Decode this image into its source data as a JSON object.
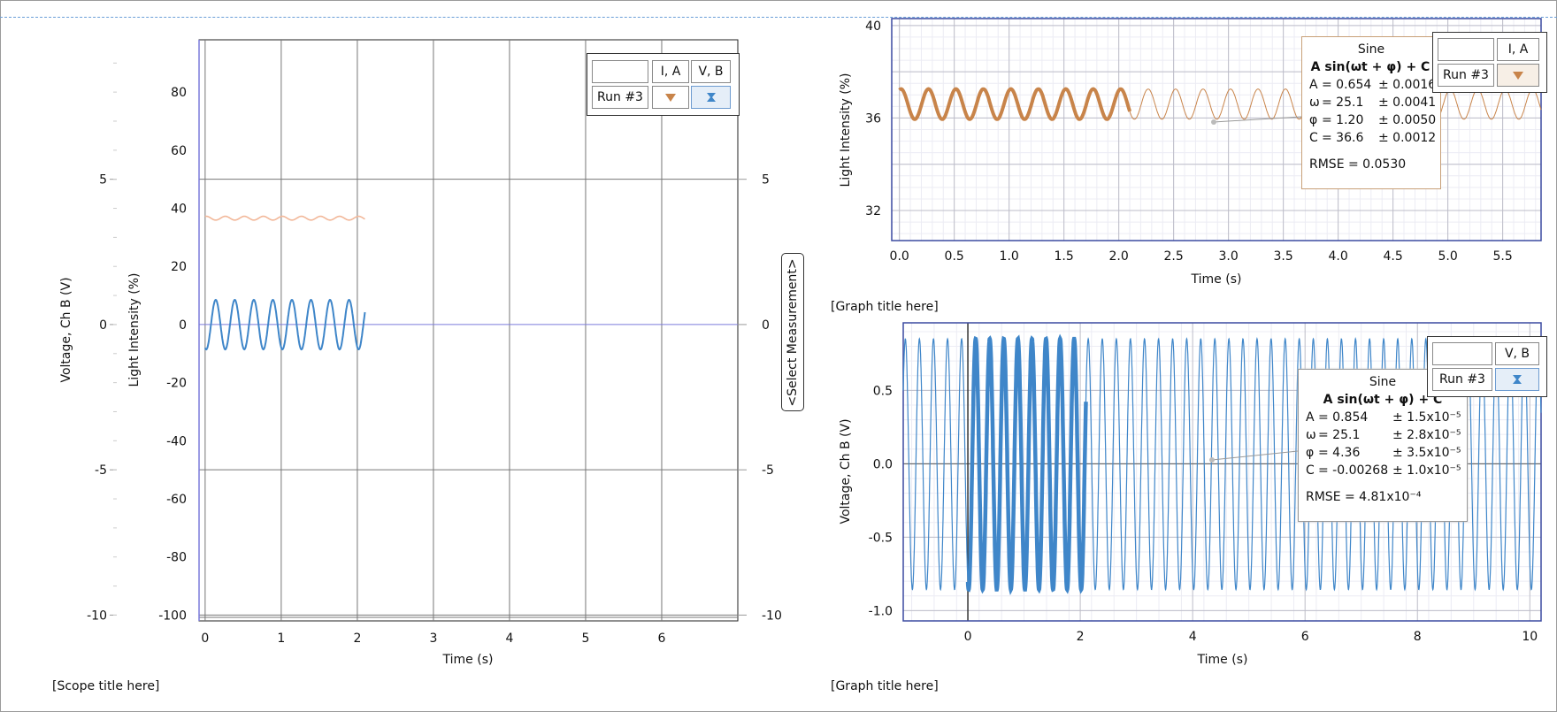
{
  "scope": {
    "caption": "[Scope title here]",
    "select_measurement": "<Select Measurement>",
    "control": {
      "run": "Run #3",
      "col1": "I, A",
      "col2": "V, B",
      "icon1": "triangle-down-icon",
      "icon2": "hourglass-icon"
    }
  },
  "graph1": {
    "control": {
      "run": "Run #3",
      "col1": "I, A",
      "icon1": "triangle-down-icon"
    },
    "fit": {
      "title": "Sine",
      "equation": "A sin(ωt + φ) + C",
      "rows": [
        {
          "label": "A",
          "value": "= 0.654",
          "err": "± 0.0016"
        },
        {
          "label": "ω",
          "value": "= 25.1",
          "err": "± 0.0041"
        },
        {
          "label": "φ",
          "value": "= 1.20",
          "err": "± 0.0050"
        },
        {
          "label": "C",
          "value": "= 36.6",
          "err": "± 0.0012"
        }
      ],
      "rmse": "RMSE = 0.0530"
    }
  },
  "graph2": {
    "caption_top": "[Graph title here]",
    "caption_bottom": "[Graph title here]",
    "control": {
      "run": "Run #3",
      "col1": "V, B",
      "icon1": "hourglass-icon"
    },
    "fit": {
      "title": "Sine",
      "equation": "A sin(ωt + φ) + C",
      "rows": [
        {
          "label": "A",
          "value": "= 0.854",
          "err": "± 1.5x10⁻⁵"
        },
        {
          "label": "ω",
          "value": "= 25.1",
          "err": "± 2.8x10⁻⁵"
        },
        {
          "label": "φ",
          "value": "= 4.36",
          "err": "± 3.5x10⁻⁵"
        },
        {
          "label": "C",
          "value": "= -0.00268",
          "err": "± 1.0x10⁻⁵"
        }
      ],
      "rmse": "RMSE = 4.81x10⁻⁴"
    }
  },
  "colors": {
    "light": "#c8844a",
    "light_faded": "#f2b89a",
    "voltage": "#3f86c9",
    "axis_blue": "#7b7bdc"
  },
  "chart_data": [
    {
      "id": "scope",
      "type": "line",
      "xlabel": "Time (s)",
      "ylabel_outer": "Voltage, Ch B (V)",
      "ylabel_inner": "Light Intensity (%)",
      "ylabel_right": "",
      "xlim": [
        -0.08,
        7.0
      ],
      "xticks": [
        "0",
        "1",
        "2",
        "3",
        "4",
        "5",
        "6"
      ],
      "y_outer_ticks": [
        "5",
        "0",
        "-5",
        "-10"
      ],
      "y_inner_ticks": [
        "80",
        "60",
        "40",
        "20",
        "0",
        "-20",
        "-40",
        "-60",
        "-80",
        "-100"
      ],
      "y_right_ticks": [
        "5",
        "0",
        "-5",
        "-10"
      ],
      "ylim_light": [
        -102,
        98
      ],
      "ylim_voltage": [
        -10.2,
        9.8
      ],
      "series": [
        {
          "name": "Light Intensity",
          "x_range": [
            0,
            2.1
          ],
          "amplitude": 0.65,
          "omega": 25.1,
          "phase": 1.2,
          "offset": 36.6
        },
        {
          "name": "Voltage, Ch B",
          "x_range": [
            0,
            2.1
          ],
          "amplitude": 0.854,
          "omega": 25.1,
          "phase": 4.36,
          "offset": -0.00268
        }
      ],
      "grid": true
    },
    {
      "id": "graph1",
      "type": "line",
      "xlabel": "Time (s)",
      "ylabel": "Light Intensity (%)",
      "xlim": [
        -0.07,
        5.85
      ],
      "ylim": [
        30.7,
        40.3
      ],
      "xticks": [
        "0.0",
        "0.5",
        "1.0",
        "1.5",
        "2.0",
        "2.5",
        "3.0",
        "3.5",
        "4.0",
        "4.5",
        "5.0",
        "5.5"
      ],
      "yticks": [
        "32",
        "36",
        "40"
      ],
      "series": [
        {
          "name": "Light Intensity",
          "x_range": [
            0,
            2.1
          ],
          "amplitude": 0.654,
          "omega": 25.1,
          "phase": 1.2,
          "offset": 36.6
        },
        {
          "name": "Sine fit",
          "x_range": [
            2.1,
            5.85
          ],
          "amplitude": 0.654,
          "omega": 25.1,
          "phase": 1.2,
          "offset": 36.6
        }
      ],
      "grid": true
    },
    {
      "id": "graph2",
      "type": "line",
      "xlabel": "Time (s)",
      "ylabel": "Voltage, Ch B (V)",
      "xlim": [
        -1.15,
        10.2
      ],
      "ylim": [
        -1.07,
        0.96
      ],
      "xticks": [
        "0",
        "2",
        "4",
        "6",
        "8",
        "10"
      ],
      "yticks": [
        "0.5",
        "0.0",
        "-0.5",
        "-1.0"
      ],
      "series": [
        {
          "name": "Voltage, Ch B",
          "x_range": [
            0,
            2.1
          ],
          "amplitude": 0.854,
          "omega": 25.1,
          "phase": 4.36,
          "offset": -0.00268
        },
        {
          "name": "Sine fit",
          "x_range": [
            -1.15,
            10.2
          ],
          "amplitude": 0.854,
          "omega": 25.1,
          "phase": 4.36,
          "offset": -0.00268
        }
      ],
      "grid": true
    }
  ]
}
